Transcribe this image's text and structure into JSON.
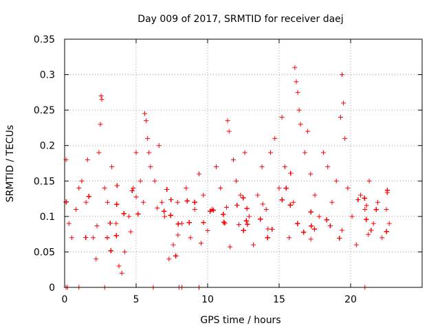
{
  "chart_data": {
    "type": "scatter",
    "title": "Day 009 of 2017, SRMTID for receiver daej",
    "xlabel": "GPS time / hours",
    "ylabel": "SRMTID / TECUs",
    "xlim": [
      0,
      25
    ],
    "ylim": [
      0,
      0.35
    ],
    "x_ticks": [
      0,
      5,
      10,
      15,
      20
    ],
    "x_tick_labels": [
      "0",
      "5",
      "10",
      "15",
      "20"
    ],
    "y_ticks": [
      0,
      0.05,
      0.1,
      0.15,
      0.2,
      0.25,
      0.3,
      0.35
    ],
    "y_tick_labels": [
      "0",
      "0.05",
      "0.1",
      "0.15",
      "0.2",
      "0.25",
      "0.3",
      "0.35"
    ],
    "grid": true,
    "marker": "+",
    "marker_color": "#ff0000",
    "series": [
      {
        "name": "SRMTID",
        "points": [
          [
            0.1,
            0.18
          ],
          [
            0.3,
            0.09
          ],
          [
            0.5,
            0.07
          ],
          [
            0.8,
            0.11
          ],
          [
            1.0,
            0.14
          ],
          [
            1.2,
            0.15
          ],
          [
            1.5,
            0.12
          ],
          [
            1.6,
            0.18
          ],
          [
            2.0,
            0.07
          ],
          [
            2.2,
            0.04
          ],
          [
            2.4,
            0.19
          ],
          [
            2.5,
            0.23
          ],
          [
            2.55,
            0.27
          ],
          [
            2.6,
            0.265
          ],
          [
            2.8,
            0.14
          ],
          [
            3.0,
            0.12
          ],
          [
            3.3,
            0.17
          ],
          [
            3.6,
            0.09
          ],
          [
            3.8,
            0.03
          ],
          [
            4.0,
            0.02
          ],
          [
            4.2,
            0.05
          ],
          [
            4.5,
            0.1
          ],
          [
            4.8,
            0.14
          ],
          [
            5.0,
            0.19
          ],
          [
            5.3,
            0.15
          ],
          [
            5.5,
            0.12
          ],
          [
            5.6,
            0.245
          ],
          [
            5.7,
            0.235
          ],
          [
            5.8,
            0.21
          ],
          [
            5.9,
            0.19
          ],
          [
            6.0,
            0.17
          ],
          [
            6.3,
            0.15
          ],
          [
            6.6,
            0.2
          ],
          [
            6.8,
            0.12
          ],
          [
            7.0,
            0.1
          ],
          [
            7.3,
            0.04
          ],
          [
            7.6,
            0.06
          ],
          [
            7.9,
            0.12
          ],
          [
            8.2,
            0.09
          ],
          [
            8.5,
            0.14
          ],
          [
            8.8,
            0.07
          ],
          [
            9.1,
            0.11
          ],
          [
            9.4,
            0.16
          ],
          [
            9.7,
            0.13
          ],
          [
            10.0,
            0.08
          ],
          [
            10.3,
            0.11
          ],
          [
            10.6,
            0.17
          ],
          [
            10.9,
            0.14
          ],
          [
            11.2,
            0.09
          ],
          [
            11.4,
            0.235
          ],
          [
            11.5,
            0.22
          ],
          [
            11.8,
            0.18
          ],
          [
            12.0,
            0.15
          ],
          [
            12.3,
            0.13
          ],
          [
            12.6,
            0.19
          ],
          [
            12.9,
            0.1
          ],
          [
            13.2,
            0.06
          ],
          [
            13.5,
            0.13
          ],
          [
            13.8,
            0.17
          ],
          [
            14.1,
            0.11
          ],
          [
            14.4,
            0.19
          ],
          [
            14.7,
            0.21
          ],
          [
            15.0,
            0.14
          ],
          [
            15.2,
            0.24
          ],
          [
            15.4,
            0.17
          ],
          [
            15.7,
            0.07
          ],
          [
            16.0,
            0.12
          ],
          [
            16.1,
            0.31
          ],
          [
            16.2,
            0.29
          ],
          [
            16.3,
            0.275
          ],
          [
            16.4,
            0.25
          ],
          [
            16.5,
            0.23
          ],
          [
            16.8,
            0.19
          ],
          [
            17.0,
            0.22
          ],
          [
            17.2,
            0.16
          ],
          [
            17.5,
            0.13
          ],
          [
            17.8,
            0.1
          ],
          [
            18.1,
            0.19
          ],
          [
            18.4,
            0.17
          ],
          [
            18.7,
            0.12
          ],
          [
            19.0,
            0.15
          ],
          [
            19.3,
            0.24
          ],
          [
            19.4,
            0.3
          ],
          [
            19.5,
            0.26
          ],
          [
            19.6,
            0.21
          ],
          [
            19.8,
            0.14
          ],
          [
            20.1,
            0.1
          ],
          [
            20.4,
            0.06
          ],
          [
            20.7,
            0.13
          ],
          [
            21.0,
            0.11
          ],
          [
            21.3,
            0.15
          ],
          [
            21.6,
            0.09
          ],
          [
            21.9,
            0.12
          ],
          [
            22.2,
            0.07
          ],
          [
            22.5,
            0.11
          ],
          [
            22.7,
            0.09
          ]
        ]
      }
    ],
    "zero_values_x": [
      0.1,
      0.2,
      1.0,
      2.8,
      6.2,
      8.0,
      8.2,
      9.4,
      21.0
    ]
  }
}
